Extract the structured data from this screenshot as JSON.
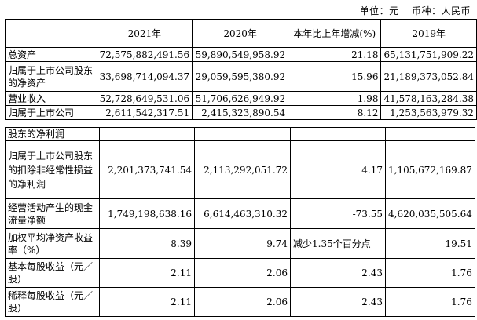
{
  "unit": {
    "label": "单位：元",
    "currency": "币种：人民币"
  },
  "headers": [
    "",
    "2021年",
    "2020年",
    "本年比上年增减(%)",
    "2019年"
  ],
  "table1": [
    {
      "label": "总资产",
      "v2021": "72,575,882,491.56",
      "v2020": "59,890,549,958.92",
      "change": "21.18",
      "v2019": "65,131,751,909.22"
    },
    {
      "label": "归属于上市公司股东的净资产",
      "v2021": "33,698,714,094.37",
      "v2020": "29,059,595,380.92",
      "change": "15.96",
      "v2019": "21,189,373,052.84"
    },
    {
      "label": "营业收入",
      "v2021": "52,728,649,531.06",
      "v2020": "51,706,626,949.92",
      "change": "1.98",
      "v2019": "41,578,163,284.38"
    },
    {
      "label": "归属于上市公司",
      "v2021": "2,611,542,317.51",
      "v2020": "2,415,323,890.54",
      "change": "8.12",
      "v2019": "1,253,563,979.32"
    }
  ],
  "table2_header": "股东的净利润",
  "table2": [
    {
      "label": "归属于上市公司股东的扣除非经常性损益的净利润",
      "v2021": "2,201,373,741.54",
      "v2020": "2,113,292,051.72",
      "change": "4.17",
      "v2019": "1,105,672,169.87"
    },
    {
      "label": "经营活动产生的现金流量净额",
      "v2021": "1,749,198,638.16",
      "v2020": "6,614,463,310.32",
      "change": "-73.55",
      "v2019": "4,620,035,505.64"
    },
    {
      "label": "加权平均净资产收益率（%）",
      "v2021": "8.39",
      "v2020": "9.74",
      "change": "减少1.35个百分点",
      "v2019": "19.51"
    },
    {
      "label": "基本每股收益（元／股）",
      "v2021": "2.11",
      "v2020": "2.06",
      "change": "2.43",
      "v2019": "1.76"
    },
    {
      "label": "稀释每股收益（元／股）",
      "v2021": "2.11",
      "v2020": "2.06",
      "change": "2.43",
      "v2019": "1.76"
    }
  ]
}
